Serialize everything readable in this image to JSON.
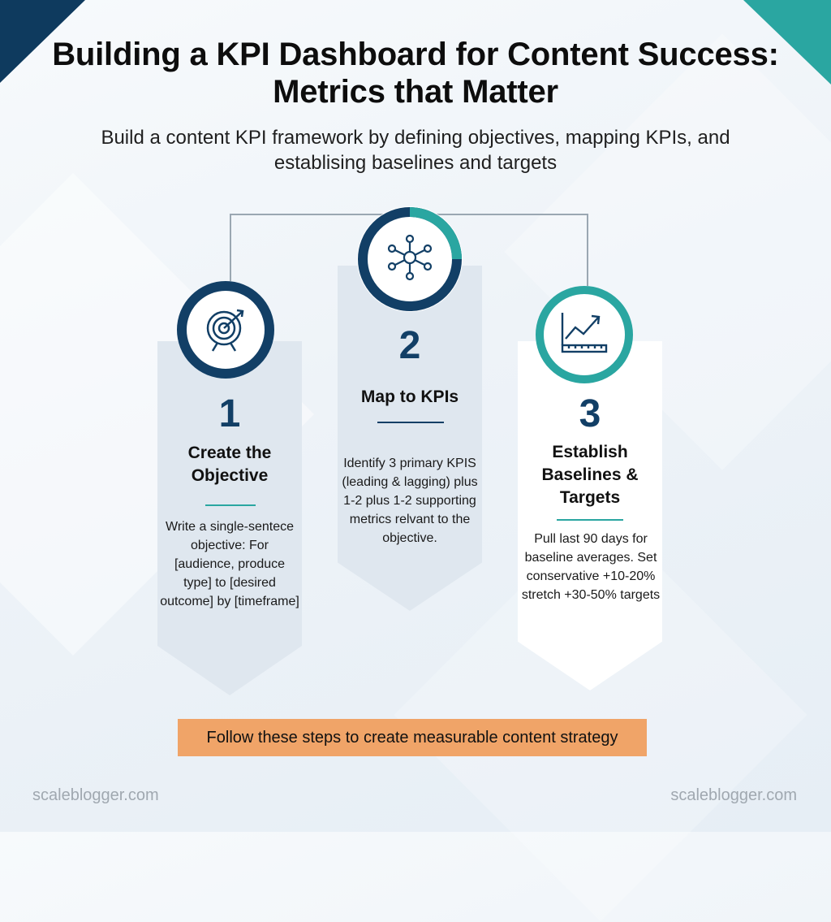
{
  "title": "Building a KPI Dashboard for Content Success: Metrics that Matter",
  "subtitle": "Build a content KPI framework by defining objectives, mapping KPIs, and establising baselines and targets",
  "steps": [
    {
      "number": "1",
      "title": "Create the Objective",
      "icon": "target-icon",
      "description": "Write a single-sentece objective: For [audience, produce type] to [desired outcome] by [timeframe]"
    },
    {
      "number": "2",
      "title": "Map to KPIs",
      "icon": "network-icon",
      "description": "Identify 3 primary KPIS (leading & lagging) plus 1-2 plus 1-2 supporting metrics relvant to the objective."
    },
    {
      "number": "3",
      "title": "Establish Baselines & Targets",
      "icon": "trend-chart-icon",
      "description": "Pull last 90 days for baseline averages. Set conservative +10-20% stretch +30-50% targets"
    }
  ],
  "banner": "Follow these steps to create measurable content strategy",
  "footer_left": "scaleblogger.com",
  "footer_right": "scaleblogger.com",
  "colors": {
    "navy": "#123f66",
    "teal": "#2aa6a1",
    "banner": "#f0a468",
    "card": "#dfe7ef"
  }
}
